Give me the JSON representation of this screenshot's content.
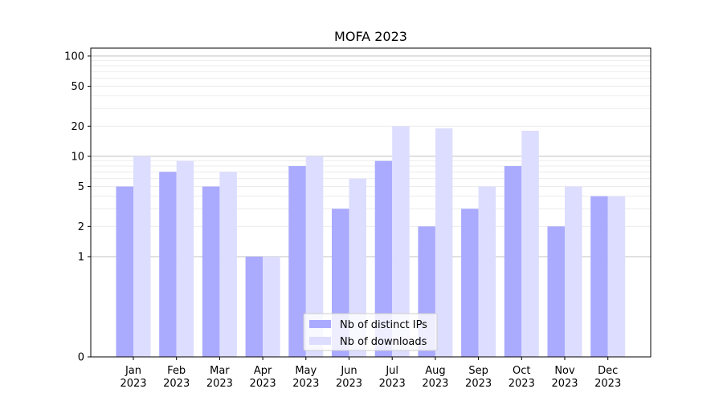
{
  "chart_data": {
    "type": "bar",
    "title": "MOFA 2023",
    "xlabel": "",
    "ylabel": "",
    "y_scale": "symlog",
    "ylim": [
      0,
      120
    ],
    "y_ticks": [
      0,
      1,
      2,
      5,
      10,
      20,
      50,
      100
    ],
    "y_tick_labels": [
      "0",
      "1",
      "2",
      "5",
      "10",
      "20",
      "50",
      "100"
    ],
    "categories": [
      [
        "Jan",
        "2023"
      ],
      [
        "Feb",
        "2023"
      ],
      [
        "Mar",
        "2023"
      ],
      [
        "Apr",
        "2023"
      ],
      [
        "May",
        "2023"
      ],
      [
        "Jun",
        "2023"
      ],
      [
        "Jul",
        "2023"
      ],
      [
        "Aug",
        "2023"
      ],
      [
        "Sep",
        "2023"
      ],
      [
        "Oct",
        "2023"
      ],
      [
        "Nov",
        "2023"
      ],
      [
        "Dec",
        "2023"
      ]
    ],
    "series": [
      {
        "name": "Nb of distinct IPs",
        "color": "#aaaaff",
        "values": [
          5,
          7,
          5,
          1,
          8,
          3,
          9,
          2,
          3,
          8,
          2,
          4
        ]
      },
      {
        "name": "Nb of downloads",
        "color": "#ddddff",
        "values": [
          10,
          9,
          7,
          1,
          10,
          6,
          20,
          19,
          5,
          18,
          5,
          4
        ]
      }
    ],
    "grid": true,
    "legend_position": "bottom-center"
  }
}
